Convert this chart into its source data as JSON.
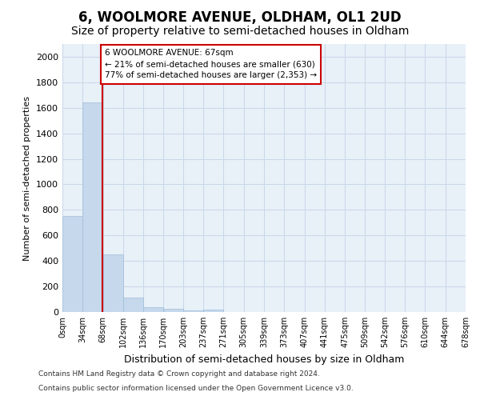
{
  "title": "6, WOOLMORE AVENUE, OLDHAM, OL1 2UD",
  "subtitle": "Size of property relative to semi-detached houses in Oldham",
  "xlabel": "Distribution of semi-detached houses by size in Oldham",
  "ylabel": "Number of semi-detached properties",
  "footer_line1": "Contains HM Land Registry data © Crown copyright and database right 2024.",
  "footer_line2": "Contains public sector information licensed under the Open Government Licence v3.0.",
  "property_size": 67,
  "annotation_title": "6 WOOLMORE AVENUE: 67sqm",
  "annotation_line1": "← 21% of semi-detached houses are smaller (630)",
  "annotation_line2": "77% of semi-detached houses are larger (2,353) →",
  "bar_edges": [
    0,
    34,
    68,
    102,
    136,
    170,
    203,
    237,
    271,
    305,
    339,
    373,
    407,
    441,
    475,
    509,
    542,
    576,
    610,
    644,
    678
  ],
  "bar_heights": [
    750,
    1640,
    450,
    110,
    40,
    25,
    15,
    20,
    0,
    0,
    0,
    0,
    0,
    0,
    0,
    0,
    0,
    0,
    0,
    0
  ],
  "bar_labels": [
    "0sqm",
    "34sqm",
    "68sqm",
    "102sqm",
    "136sqm",
    "170sqm",
    "203sqm",
    "237sqm",
    "271sqm",
    "305sqm",
    "339sqm",
    "373sqm",
    "407sqm",
    "441sqm",
    "475sqm",
    "509sqm",
    "542sqm",
    "576sqm",
    "610sqm",
    "644sqm",
    "678sqm"
  ],
  "bar_color": "#c5d8ec",
  "bar_edgecolor": "#a0bdd8",
  "vline_color": "#cc0000",
  "vline_x": 67,
  "ylim": [
    0,
    2100
  ],
  "yticks": [
    0,
    200,
    400,
    600,
    800,
    1000,
    1200,
    1400,
    1600,
    1800,
    2000
  ],
  "grid_color": "#c8d8e8",
  "background_color": "#ffffff",
  "plot_bg_color": "#e8f0f8",
  "title_fontsize": 12,
  "subtitle_fontsize": 10,
  "annotation_box_edgecolor": "#cc0000",
  "annotation_box_facecolor": "#ffffff"
}
